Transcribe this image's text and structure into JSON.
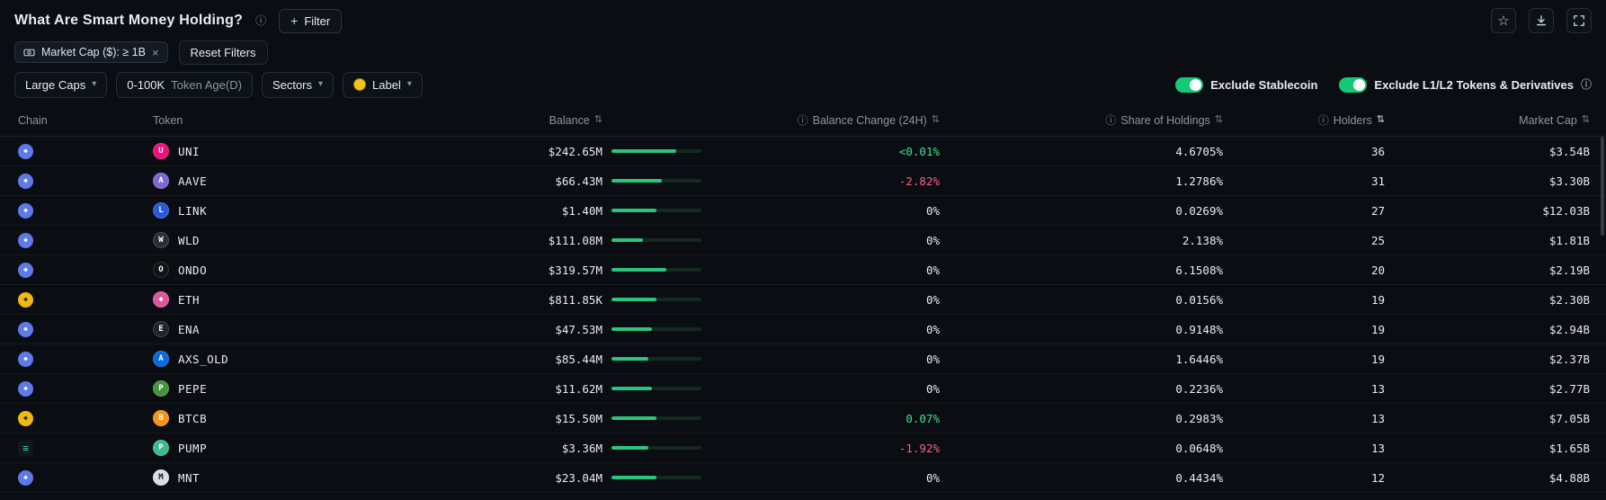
{
  "page": {
    "title": "What Are Smart Money Holding?",
    "filter_button_label": "Filter"
  },
  "icons": {
    "info": "ⓘ",
    "plus": "+",
    "close": "×",
    "star": "☆",
    "chevron": "▾",
    "sort": "⇅",
    "ethereum": "◆",
    "bnb": "◆",
    "solana": "≡"
  },
  "filter_bar": {
    "chip_label": "Market Cap ($): ≥ 1B",
    "reset_label": "Reset Filters"
  },
  "controls": {
    "large_caps": "Large Caps",
    "token_age_value": "0-100K",
    "token_age_suffix": "Token Age(D)",
    "sectors": "Sectors",
    "label": "Label",
    "exclude_stablecoin": "Exclude Stablecoin",
    "exclude_l1l2": "Exclude L1/L2 Tokens & Derivatives",
    "exclude_stablecoin_on": true,
    "exclude_l1l2_on": true
  },
  "colors": {
    "toggle_green": "#14ca74",
    "bar_green": "#2bc47c",
    "positive_green": "#3fe08f",
    "negative_red": "#ff5e7d"
  },
  "table": {
    "headers": {
      "chain": "Chain",
      "token": "Token",
      "balance": "Balance",
      "balance_change": "Balance Change (24H)",
      "share": "Share of Holdings",
      "holders": "Holders",
      "market_cap": "Market Cap"
    },
    "rows": [
      {
        "chain": "ethereum",
        "token": "UNI",
        "token_color": "#f50d7a",
        "token_glyph": "U",
        "balance": "$242.65M",
        "bar_pct": 72,
        "change": "<0.01%",
        "change_dir": "up",
        "share": "4.6705%",
        "holders": "36",
        "market_cap": "$3.54B"
      },
      {
        "chain": "ethereum",
        "token": "AAVE",
        "token_color": "#7f68d2",
        "token_glyph": "A",
        "balance": "$66.43M",
        "bar_pct": 56,
        "change": "-2.82%",
        "change_dir": "down",
        "share": "1.2786%",
        "holders": "31",
        "market_cap": "$3.30B"
      },
      {
        "chain": "ethereum",
        "token": "LINK",
        "token_color": "#2a5ada",
        "token_glyph": "L",
        "balance": "$1.40M",
        "bar_pct": 50,
        "change": "0%",
        "change_dir": "flat",
        "share": "0.0269%",
        "holders": "27",
        "market_cap": "$12.03B"
      },
      {
        "chain": "ethereum",
        "token": "WLD",
        "token_color": "#2a2e35",
        "token_glyph": "W",
        "balance": "$111.08M",
        "bar_pct": 35,
        "change": "0%",
        "change_dir": "flat",
        "share": "2.138%",
        "holders": "25",
        "market_cap": "$1.81B"
      },
      {
        "chain": "ethereum",
        "token": "ONDO",
        "token_color": "#101318",
        "token_glyph": "O",
        "balance": "$319.57M",
        "bar_pct": 61,
        "change": "0%",
        "change_dir": "flat",
        "share": "6.1508%",
        "holders": "20",
        "market_cap": "$2.19B"
      },
      {
        "chain": "bnb",
        "token": "ETH",
        "token_color": "#e0559d",
        "token_glyph": "◆",
        "balance": "$811.85K",
        "bar_pct": 50,
        "change": "0%",
        "change_dir": "flat",
        "share": "0.0156%",
        "holders": "19",
        "market_cap": "$2.30B"
      },
      {
        "chain": "ethereum",
        "token": "ENA",
        "token_color": "#22262c",
        "token_glyph": "E",
        "balance": "$47.53M",
        "bar_pct": 45,
        "change": "0%",
        "change_dir": "flat",
        "share": "0.9148%",
        "holders": "19",
        "market_cap": "$2.94B"
      },
      {
        "chain": "ethereum",
        "token": "AXS_OLD",
        "token_color": "#0a6ae4",
        "token_glyph": "A",
        "balance": "$85.44M",
        "bar_pct": 41,
        "change": "0%",
        "change_dir": "flat",
        "share": "1.6446%",
        "holders": "19",
        "market_cap": "$2.37B"
      },
      {
        "chain": "ethereum",
        "token": "PEPE",
        "token_color": "#48933f",
        "token_glyph": "P",
        "balance": "$11.62M",
        "bar_pct": 45,
        "change": "0%",
        "change_dir": "flat",
        "share": "0.2236%",
        "holders": "13",
        "market_cap": "$2.77B"
      },
      {
        "chain": "bnb",
        "token": "BTCB",
        "token_color": "#f7931a",
        "token_glyph": "B",
        "balance": "$15.50M",
        "bar_pct": 50,
        "change": "0.07%",
        "change_dir": "up",
        "share": "0.2983%",
        "holders": "13",
        "market_cap": "$7.05B"
      },
      {
        "chain": "solana",
        "token": "PUMP",
        "token_color": "#3fb98c",
        "token_glyph": "P",
        "balance": "$3.36M",
        "bar_pct": 41,
        "change": "-1.92%",
        "change_dir": "down",
        "share": "0.0648%",
        "holders": "13",
        "market_cap": "$1.65B"
      },
      {
        "chain": "ethereum",
        "token": "MNT",
        "token_color": "#d9dee4",
        "token_text": "#15181c",
        "token_glyph": "M",
        "balance": "$23.04M",
        "bar_pct": 50,
        "change": "0%",
        "change_dir": "flat",
        "share": "0.4434%",
        "holders": "12",
        "market_cap": "$4.88B"
      }
    ]
  }
}
